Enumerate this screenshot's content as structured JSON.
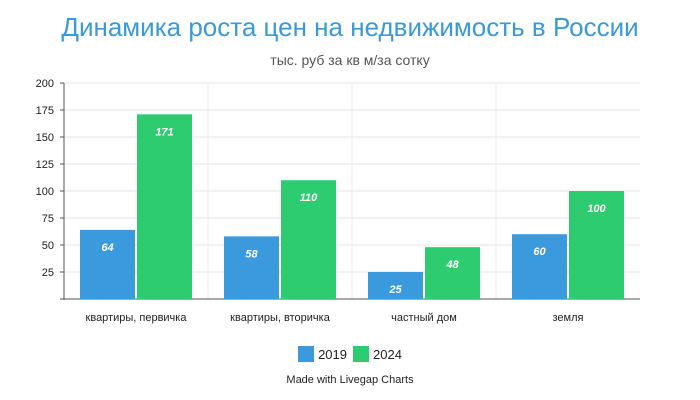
{
  "chart_data": {
    "type": "bar",
    "title": "Динамика роста цен на недвижимость в России",
    "subtitle": "тыс. руб за кв м/за сотку",
    "categories": [
      "квартиры, первичка",
      "квартиры, вторичка",
      "частный дом",
      "земля"
    ],
    "series": [
      {
        "name": "2019",
        "values": [
          64,
          58,
          25,
          60
        ],
        "color": "#3b9ade"
      },
      {
        "name": "2024",
        "values": [
          171,
          110,
          48,
          100
        ],
        "color": "#2ecc71"
      }
    ],
    "yticks": [
      25,
      50,
      75,
      100,
      125,
      150,
      175,
      200
    ],
    "ylim": [
      0,
      200
    ],
    "xlabel": "",
    "ylabel": "",
    "grid": true,
    "legend_position": "bottom"
  },
  "credit": "Made with Livegap Charts"
}
